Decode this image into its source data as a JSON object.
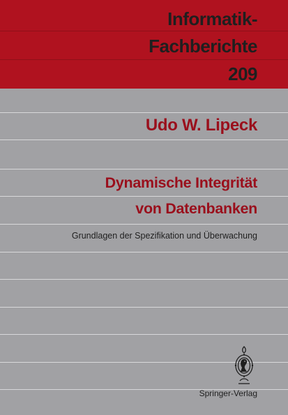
{
  "series": {
    "line1": "Informatik-",
    "line2": "Fachberichte",
    "number": "209"
  },
  "author": "Udo W. Lipeck",
  "title": {
    "line1": "Dynamische Integrität",
    "line2": "von Datenbanken"
  },
  "subtitle": "Grundlagen der Spezifikation und Überwachung",
  "publisher": "Springer-Verlag",
  "logo": {
    "icon": "springer-chess-knight-icon"
  },
  "colors": {
    "band": "#b0121f",
    "background": "#a1a1a4",
    "accent_text": "#9a0f1c",
    "dark_text": "#1f1f1f"
  }
}
